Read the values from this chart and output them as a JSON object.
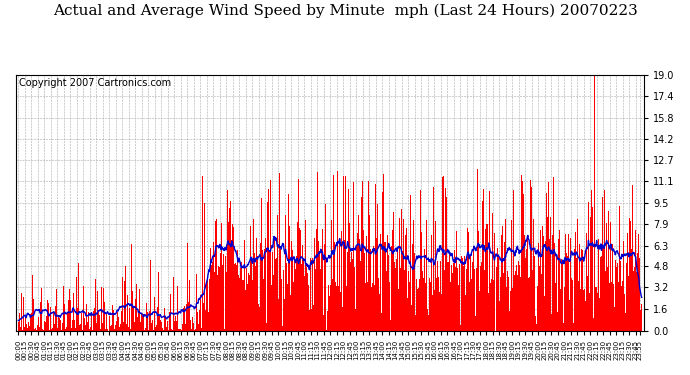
{
  "title": "Actual and Average Wind Speed by Minute  mph (Last 24 Hours) 20070223",
  "copyright": "Copyright 2007 Cartronics.com",
  "y_ticks": [
    0.0,
    1.6,
    3.2,
    4.8,
    6.3,
    7.9,
    9.5,
    11.1,
    12.7,
    14.2,
    15.8,
    17.4,
    19.0
  ],
  "ylim": [
    0.0,
    19.0
  ],
  "background_color": "#ffffff",
  "bar_color": "#ff0000",
  "line_color": "#0000cc",
  "title_fontsize": 11,
  "copyright_fontsize": 7,
  "avg_window": 30
}
